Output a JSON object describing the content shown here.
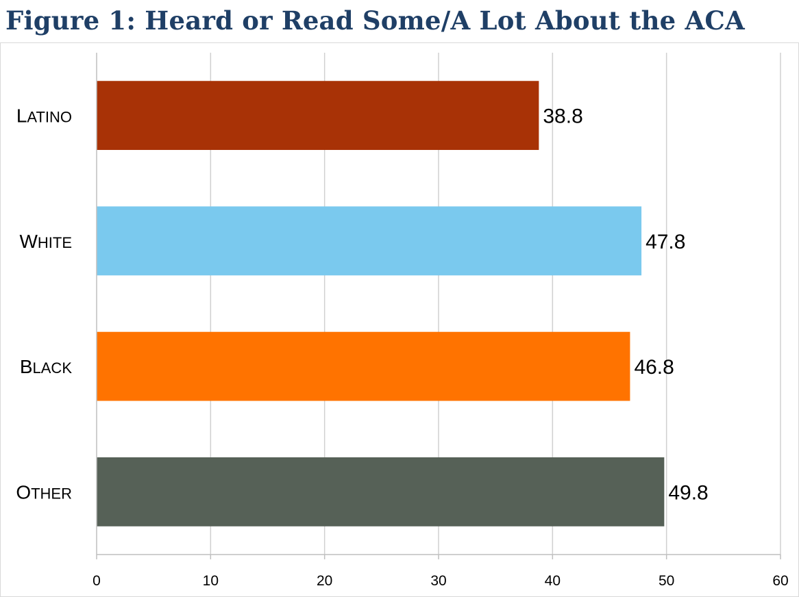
{
  "title": "Figure 1: Heard or Read Some/A Lot About the ACA",
  "chart_data": {
    "type": "bar",
    "orientation": "horizontal",
    "title": "Figure 1: Heard or Read Some/A Lot About the ACA",
    "categories": [
      "Latino",
      "White",
      "Black",
      "Other"
    ],
    "values": [
      38.8,
      47.8,
      46.8,
      49.8
    ],
    "data_labels": [
      "38.8",
      "47.8",
      "46.8",
      "49.8"
    ],
    "colors": [
      "#a83206",
      "#7ac9ee",
      "#ff7300",
      "#566157"
    ],
    "xlim": [
      0,
      60
    ],
    "xticks": [
      0,
      10,
      20,
      30,
      40,
      50,
      60
    ],
    "xlabel": "",
    "ylabel": "",
    "grid": "vertical",
    "legend": "none"
  }
}
